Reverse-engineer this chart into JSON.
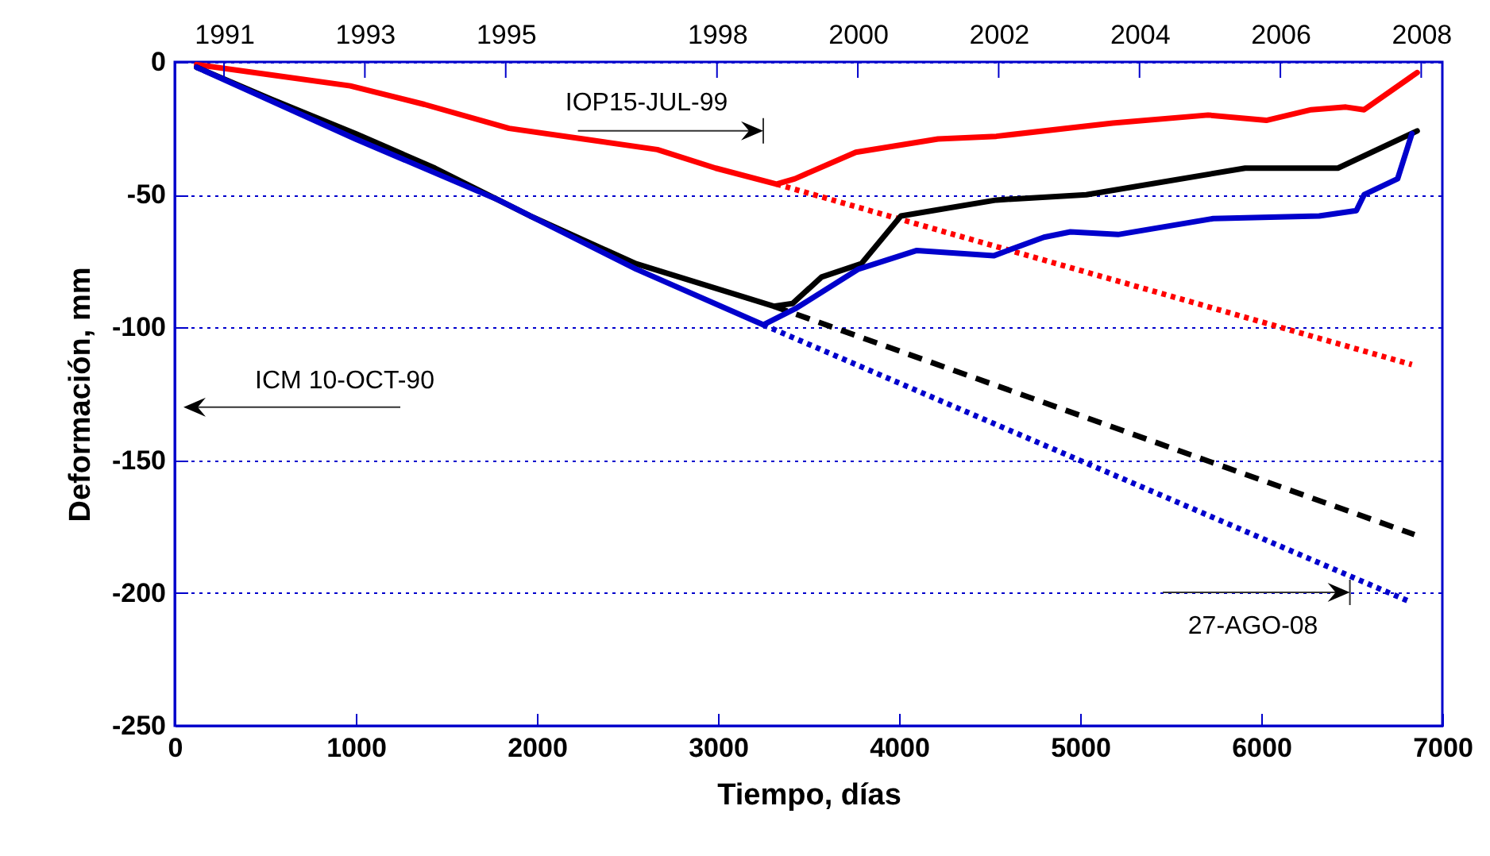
{
  "chart_data": {
    "type": "line",
    "xlabel": "Tiempo, días",
    "ylabel": "Deformación, mm",
    "xlim": [
      0,
      7000
    ],
    "xticks": [
      0,
      1000,
      2000,
      3000,
      4000,
      5000,
      6000,
      7000
    ],
    "ylim": [
      -250,
      0
    ],
    "yticks": [
      0,
      -50,
      -100,
      -150,
      -200,
      -250
    ],
    "x2lim": [
      1990.3,
      2008.3
    ],
    "x2ticks": [
      1991,
      1993,
      1995,
      1998,
      2000,
      2002,
      2004,
      2006,
      2008
    ],
    "grid": "y",
    "series": [
      {
        "color": "#ff0000",
        "line_style": "solid",
        "x": [
          121,
          545,
          969,
          1379,
          1846,
          2256,
          2665,
          2987,
          3323,
          3425,
          3761,
          4215,
          4537,
          5180,
          5706,
          6028,
          6276,
          6467,
          6568,
          6861
        ],
        "values": [
          -1,
          -5,
          -9,
          -16,
          -25,
          -29,
          -33,
          -40,
          -46,
          -44,
          -34,
          -29,
          -28,
          -23,
          -20,
          -22,
          -18,
          -17,
          -18,
          -4
        ]
      },
      {
        "color": "#ff0000",
        "line_style": "dotted",
        "x": [
          3323,
          6832
        ],
        "values": [
          -46,
          -114
        ]
      },
      {
        "color": "#000000",
        "line_style": "solid",
        "x": [
          121,
          531,
          998,
          1437,
          1963,
          2548,
          2928,
          3308,
          3411,
          3572,
          3791,
          4010,
          4537,
          5034,
          5911,
          6423,
          6861
        ],
        "values": [
          -2,
          -14,
          -27,
          -40,
          -58,
          -76,
          -84,
          -92,
          -91,
          -81,
          -76,
          -58,
          -52,
          -50,
          -40,
          -40,
          -26
        ]
      },
      {
        "color": "#000000",
        "line_style": "dashed",
        "x": [
          3308,
          6846
        ],
        "values": [
          -92,
          -178
        ]
      },
      {
        "color": "#0000cc",
        "line_style": "solid",
        "x": [
          121,
          998,
          1788,
          2548,
          3250,
          3425,
          3776,
          4098,
          4522,
          4800,
          4946,
          5209,
          5735,
          6320,
          6525,
          6568,
          6753,
          6832
        ],
        "values": [
          -2,
          -29,
          -52,
          -78,
          -99,
          -93,
          -78,
          -71,
          -73,
          -66,
          -64,
          -65,
          -59,
          -58,
          -56,
          -50,
          -44,
          -27
        ]
      },
      {
        "color": "#0000cc",
        "line_style": "dotted",
        "x": [
          3250,
          6811
        ],
        "values": [
          -99,
          -203
        ]
      }
    ],
    "annotations": [
      "IOP15-JUL-99",
      "ICM 10-OCT-90",
      "27-AGO-08"
    ]
  }
}
